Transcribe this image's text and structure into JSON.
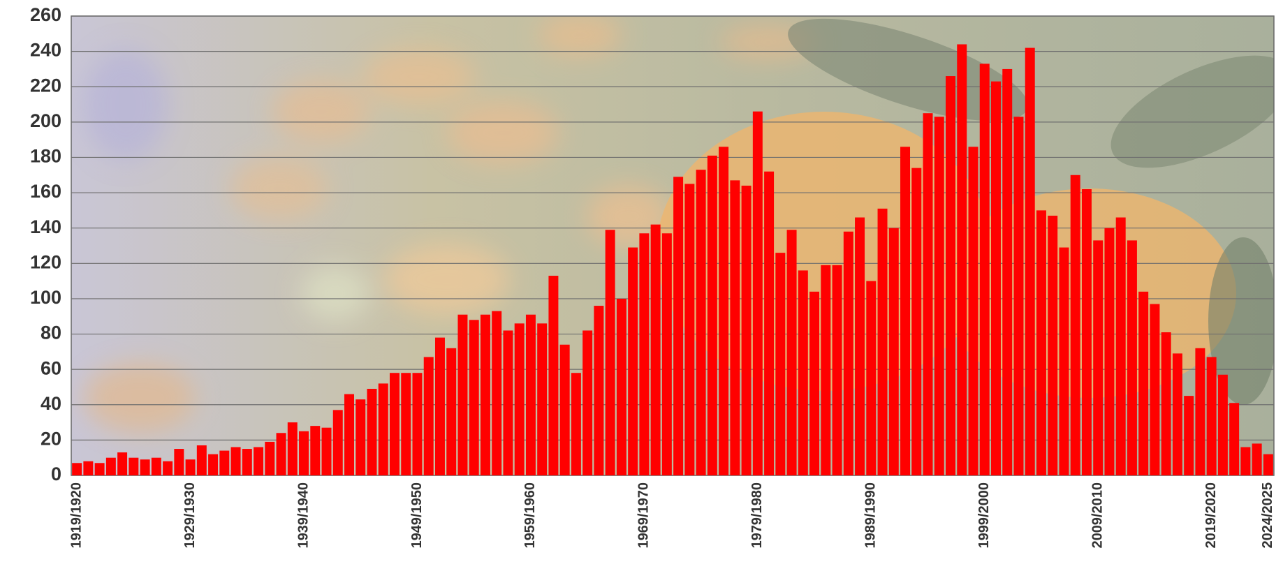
{
  "chart_data": {
    "type": "bar",
    "categories": [
      "1919/1920",
      null,
      null,
      null,
      null,
      null,
      null,
      null,
      null,
      null,
      "1929/1930",
      null,
      null,
      null,
      null,
      null,
      null,
      null,
      null,
      null,
      "1939/1940",
      null,
      null,
      null,
      null,
      null,
      null,
      null,
      null,
      null,
      "1949/1950",
      null,
      null,
      null,
      null,
      null,
      null,
      null,
      null,
      null,
      "1959/1960",
      null,
      null,
      null,
      null,
      null,
      null,
      null,
      null,
      null,
      "1969/1970",
      null,
      null,
      null,
      null,
      null,
      null,
      null,
      null,
      null,
      "1979/1980",
      null,
      null,
      null,
      null,
      null,
      null,
      null,
      null,
      null,
      "1989/1990",
      null,
      null,
      null,
      null,
      null,
      null,
      null,
      null,
      null,
      "1999/2000",
      null,
      null,
      null,
      null,
      null,
      null,
      null,
      null,
      null,
      "2009/2010",
      null,
      null,
      null,
      null,
      null,
      null,
      null,
      null,
      null,
      "2019/2020",
      null,
      null,
      null,
      null,
      "2024/2025"
    ],
    "values": [
      7,
      8,
      7,
      10,
      13,
      10,
      9,
      10,
      8,
      15,
      9,
      17,
      12,
      14,
      16,
      15,
      16,
      19,
      24,
      30,
      25,
      28,
      27,
      37,
      46,
      43,
      49,
      52,
      58,
      58,
      58,
      67,
      78,
      72,
      91,
      88,
      91,
      93,
      82,
      86,
      91,
      86,
      113,
      74,
      58,
      82,
      96,
      139,
      100,
      129,
      137,
      142,
      137,
      169,
      165,
      173,
      181,
      186,
      167,
      164,
      206,
      172,
      126,
      139,
      116,
      104,
      119,
      119,
      138,
      146,
      110,
      151,
      140,
      186,
      174,
      205,
      203,
      226,
      244,
      186,
      233,
      223,
      230,
      203,
      242,
      150,
      147,
      129,
      170,
      162,
      133,
      140,
      146,
      133,
      104,
      97,
      81,
      69,
      45,
      72,
      67,
      57,
      41,
      16,
      18,
      12
    ],
    "color": "#ff0000",
    "ylim": [
      0,
      260
    ],
    "yticks": [
      0,
      20,
      40,
      60,
      80,
      100,
      120,
      140,
      160,
      180,
      200,
      220,
      240,
      260
    ],
    "grid": true
  }
}
